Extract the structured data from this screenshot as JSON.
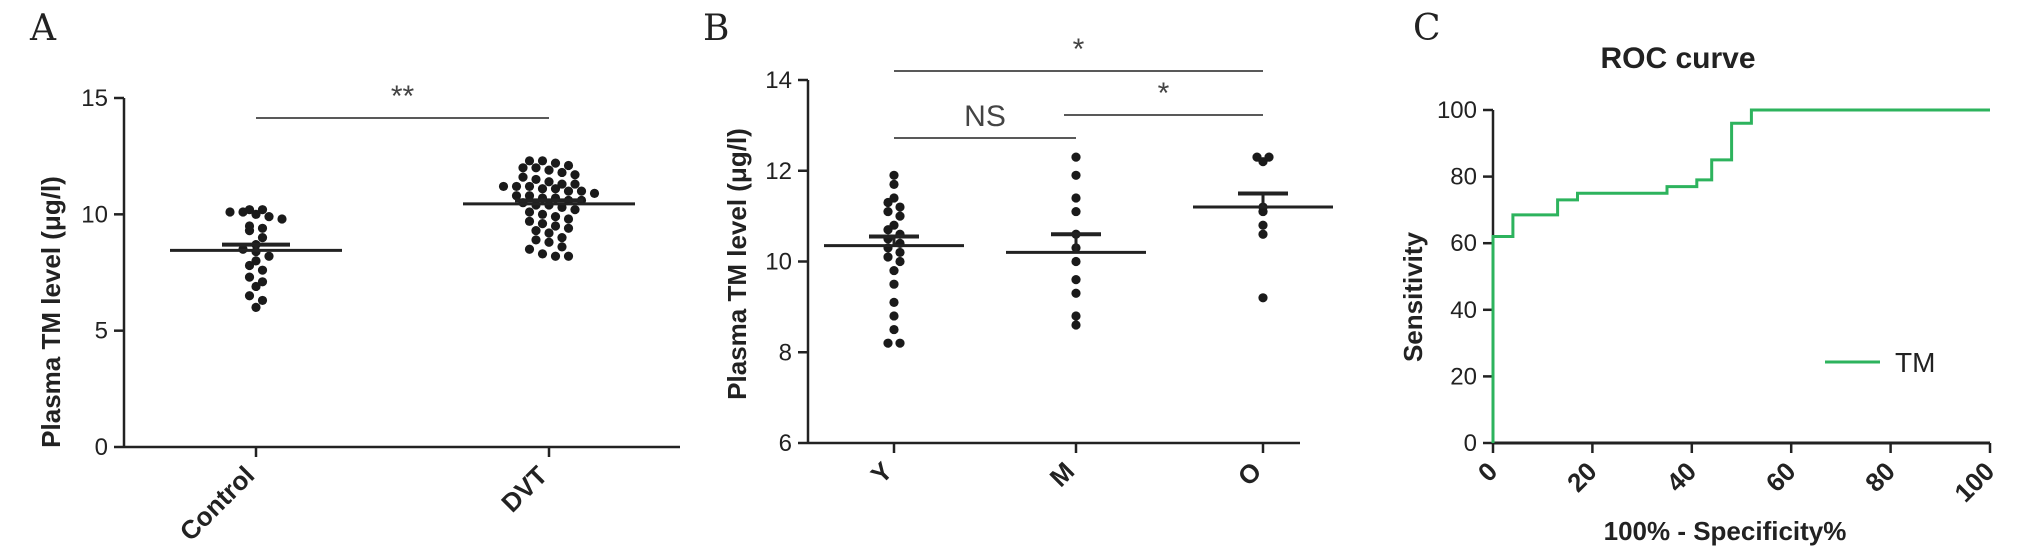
{
  "chart_data": [
    {
      "panel": "A",
      "type": "scatter",
      "ylabel": "Plasma TM level (μg/l)",
      "ylim": [
        0,
        15
      ],
      "yticks": [
        "0",
        "5",
        "10",
        "15"
      ],
      "categories": [
        "Control",
        "DVT"
      ],
      "means": [
        8.45,
        10.45
      ],
      "sem_upper": [
        8.7,
        10.6
      ],
      "points": [
        [
          10.2,
          10.2,
          10.1,
          10.1,
          10.0,
          9.9,
          9.8,
          9.5,
          9.4,
          9.3,
          9.0,
          8.7,
          8.5,
          8.4,
          8.2,
          8.0,
          7.8,
          7.6,
          7.3,
          7.1,
          6.9,
          6.5,
          6.3,
          6.0
        ],
        [
          12.3,
          12.3,
          12.2,
          12.1,
          12.0,
          12.0,
          11.9,
          11.8,
          11.7,
          11.6,
          11.5,
          11.4,
          11.3,
          11.3,
          11.2,
          11.2,
          11.2,
          11.1,
          11.1,
          11.0,
          11.0,
          10.9,
          10.8,
          10.8,
          10.7,
          10.7,
          10.6,
          10.6,
          10.5,
          10.4,
          10.4,
          10.3,
          10.2,
          10.1,
          10.0,
          9.9,
          9.8,
          9.7,
          9.6,
          9.5,
          9.4,
          9.3,
          9.2,
          9.0,
          8.9,
          8.8,
          8.6,
          8.5,
          8.3,
          8.2,
          8.2
        ]
      ],
      "significance": [
        {
          "from": 0,
          "to": 1,
          "label": "**"
        }
      ]
    },
    {
      "panel": "B",
      "type": "scatter",
      "ylabel": "Plasma TM level (μg/l)",
      "ylim": [
        6,
        14
      ],
      "yticks": [
        "6",
        "8",
        "10",
        "12",
        "14"
      ],
      "categories": [
        "Y",
        "M",
        "O"
      ],
      "means": [
        10.35,
        10.2,
        11.2
      ],
      "sem_upper": [
        10.55,
        10.6,
        11.5
      ],
      "points": [
        [
          11.9,
          11.7,
          11.4,
          11.3,
          11.2,
          11.1,
          11.0,
          10.8,
          10.7,
          10.6,
          10.5,
          10.4,
          10.3,
          10.2,
          10.1,
          10.0,
          9.8,
          9.5,
          9.1,
          8.8,
          8.5,
          8.2,
          8.2
        ],
        [
          12.3,
          11.9,
          11.4,
          11.1,
          10.6,
          10.3,
          10.0,
          9.6,
          9.3,
          8.8,
          8.6
        ],
        [
          12.3,
          12.3,
          12.2,
          11.2,
          11.1,
          10.8,
          10.6,
          9.2
        ]
      ],
      "significance": [
        {
          "from": 0,
          "to": 2,
          "label": "*"
        },
        {
          "from": 0,
          "to": 1,
          "label": "NS"
        },
        {
          "from": 1,
          "to": 2,
          "label": "*"
        }
      ]
    },
    {
      "panel": "C",
      "type": "line",
      "title": "ROC curve",
      "xlabel": "100% - Specificity%",
      "ylabel": "Sensitivity",
      "xlim": [
        0,
        100
      ],
      "ylim": [
        0,
        100
      ],
      "xticks": [
        "0",
        "20",
        "40",
        "60",
        "80",
        "100"
      ],
      "yticks": [
        "0",
        "20",
        "40",
        "60",
        "80",
        "100"
      ],
      "series": [
        {
          "name": "TM",
          "color": "#2db35d",
          "x": [
            0,
            0,
            4,
            4,
            13,
            13,
            17,
            17,
            35,
            35,
            41,
            41,
            44,
            44,
            48,
            48,
            52,
            52,
            100
          ],
          "y": [
            0,
            62,
            62,
            68.5,
            68.5,
            73,
            73,
            75,
            75,
            77,
            77,
            79,
            79,
            85,
            85,
            96,
            96,
            100,
            100
          ]
        }
      ],
      "reference_color": "#222222"
    }
  ]
}
